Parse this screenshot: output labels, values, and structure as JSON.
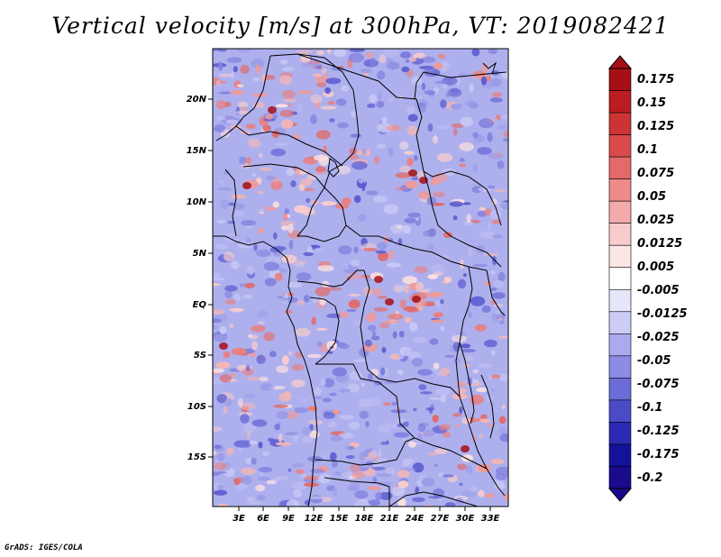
{
  "title": "Vertical velocity [m/s] at 300hPa, VT: 2019082421",
  "map": {
    "lat_labels": [
      "20N",
      "15N",
      "10N",
      "5N",
      "EQ",
      "5S",
      "10S",
      "15S"
    ],
    "lon_labels": [
      "3E",
      "6E",
      "9E",
      "12E",
      "15E",
      "18E",
      "21E",
      "24E",
      "27E",
      "30E",
      "33E"
    ]
  },
  "colorbar": {
    "labels": [
      "0.175",
      "0.15",
      "0.125",
      "0.1",
      "0.075",
      "0.05",
      "0.025",
      "0.0125",
      "0.005",
      "-0.005",
      "-0.0125",
      "-0.025",
      "-0.05",
      "-0.075",
      "-0.1",
      "-0.125",
      "-0.175",
      "-0.2"
    ],
    "colors": [
      "#a50f15",
      "#bb1c22",
      "#cc3333",
      "#da4c4c",
      "#e46a6a",
      "#ed8a8a",
      "#f4aaaa",
      "#f9cccc",
      "#fde6e6",
      "#ffffff",
      "#e6e6fa",
      "#ccccf5",
      "#aaaaee",
      "#8c8ce6",
      "#6c6cd8",
      "#4b4bc8",
      "#2a2ab4",
      "#12129a",
      "#1a0a8c"
    ],
    "top_color": "#a50f15",
    "bottom_color": "#1a0a8c"
  },
  "credit": "GrADS: IGES/COLA"
}
